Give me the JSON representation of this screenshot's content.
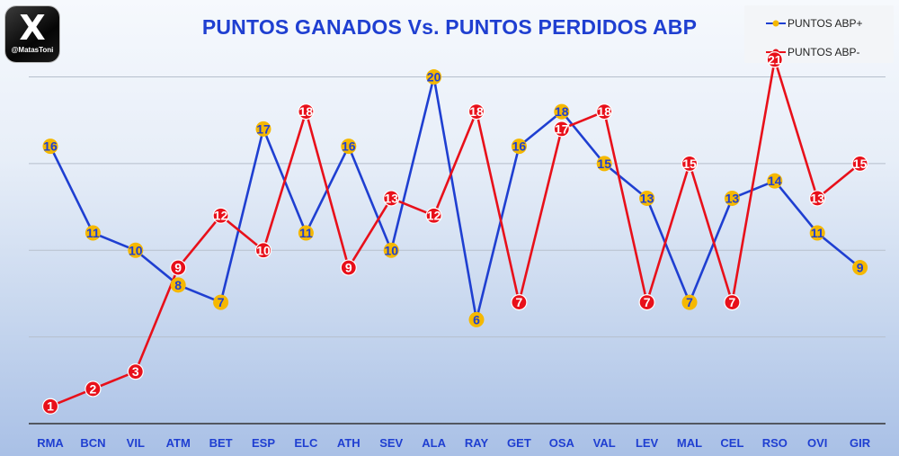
{
  "logo": {
    "glyph": "X",
    "handle": "@MatasToni",
    "icon": "x-logo-icon"
  },
  "chart_data": {
    "type": "line",
    "title": "PUNTOS GANADOS Vs. PUNTOS PERDIDOS ABP",
    "categories": [
      "RMA",
      "BCN",
      "VIL",
      "ATM",
      "BET",
      "ESP",
      "ELC",
      "ATH",
      "SEV",
      "ALA",
      "RAY",
      "GET",
      "OSA",
      "VAL",
      "LEV",
      "MAL",
      "CEL",
      "RSO",
      "OVI",
      "GIR"
    ],
    "series": [
      {
        "name": "PUNTOS ABP+",
        "color": "#1f3fd1",
        "marker_color": "#f5b800",
        "values": [
          16,
          11,
          10,
          8,
          7,
          17,
          11,
          16,
          10,
          20,
          6,
          16,
          18,
          15,
          13,
          7,
          13,
          14,
          11,
          9
        ]
      },
      {
        "name": "PUNTOS ABP-",
        "color": "#e8101a",
        "marker_color": "#e8101a",
        "values": [
          1,
          2,
          3,
          9,
          12,
          10,
          18,
          9,
          13,
          12,
          18,
          7,
          17,
          18,
          7,
          15,
          7,
          21,
          13,
          15
        ]
      }
    ],
    "xlabel": "",
    "ylabel": "",
    "ylim": [
      0,
      22
    ],
    "grid": true,
    "legend_position": "top-right"
  }
}
